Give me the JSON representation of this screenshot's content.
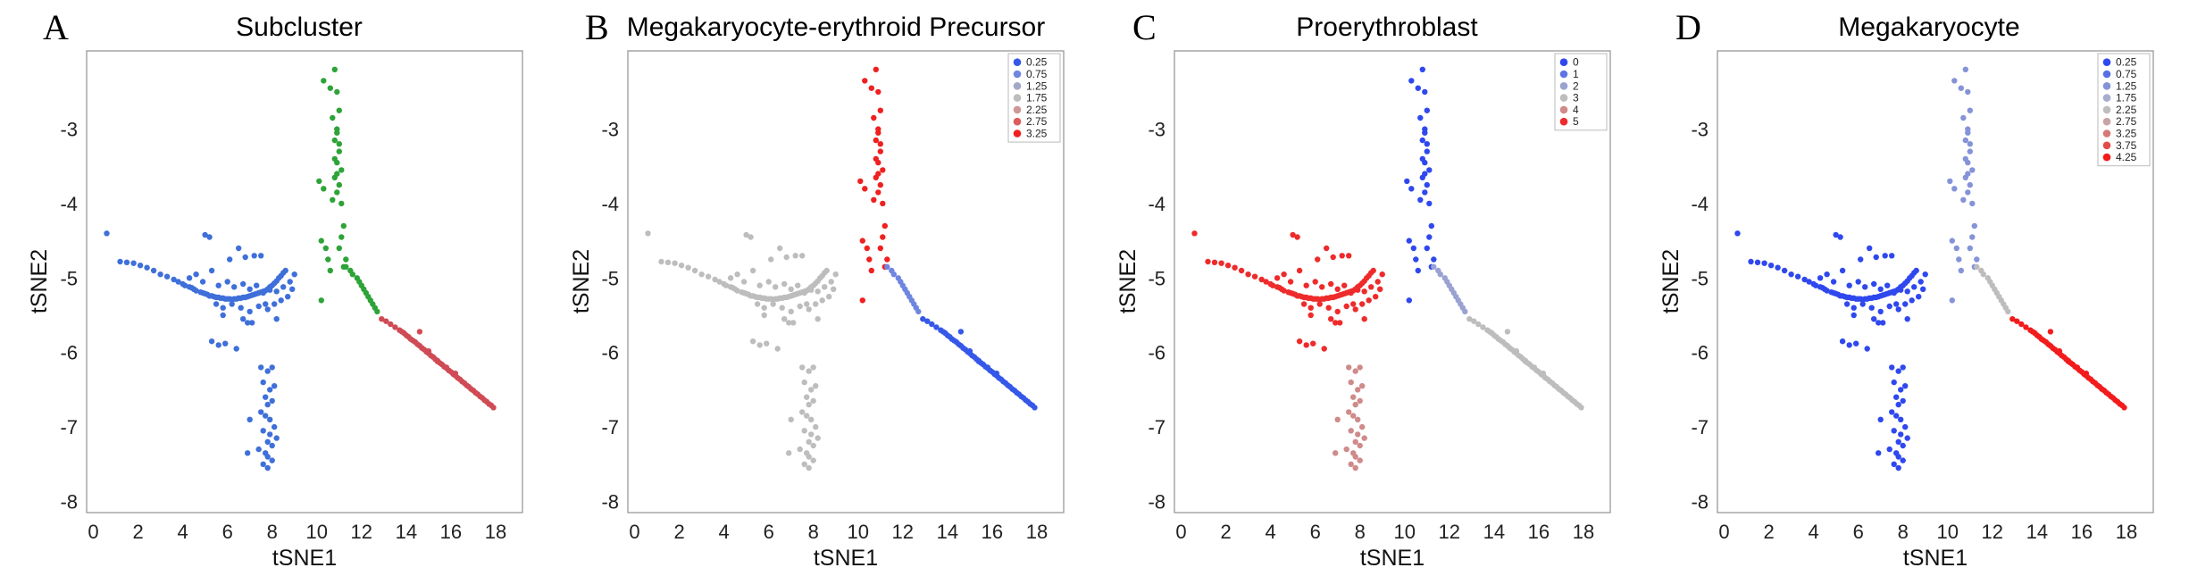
{
  "chart_data": [
    {
      "type": "scatter",
      "panel_label": "A",
      "title": "Subcluster",
      "xlabel": "tSNE1",
      "ylabel": "tSNE2",
      "xlim": [
        -0.3,
        19.2
      ],
      "ylim": [
        -8.15,
        -1.95
      ],
      "x_ticks": [
        0,
        2,
        4,
        6,
        8,
        10,
        12,
        14,
        16,
        18
      ],
      "y_ticks": [
        -3,
        -4,
        -5,
        -6,
        -7,
        -8
      ],
      "grid": false,
      "legend": null,
      "color_mode": "cluster"
    },
    {
      "type": "scatter",
      "panel_label": "B",
      "title": "Megakaryocyte-erythroid Precursor",
      "xlabel": "tSNE1",
      "ylabel": "tSNE2",
      "xlim": [
        -0.3,
        19.2
      ],
      "ylim": [
        -8.15,
        -1.95
      ],
      "x_ticks": [
        0,
        2,
        4,
        6,
        8,
        10,
        12,
        14,
        16,
        18
      ],
      "y_ticks": [
        -3,
        -4,
        -5,
        -6,
        -7,
        -8
      ],
      "grid": false,
      "legend": {
        "position": "top-right",
        "entries": [
          {
            "label": "0.25",
            "color": "#3658e8"
          },
          {
            "label": "0.75",
            "color": "#6f86e0"
          },
          {
            "label": "1.25",
            "color": "#a3a8c8"
          },
          {
            "label": "1.75",
            "color": "#bdbdbd"
          },
          {
            "label": "2.25",
            "color": "#cd9898"
          },
          {
            "label": "2.75",
            "color": "#dd5b5b"
          },
          {
            "label": "3.25",
            "color": "#ef2020"
          }
        ]
      },
      "branch_values": {
        "left": "1.75",
        "bottom": "1.75",
        "upper": "3.25",
        "mid": "0.75",
        "lower": "0.25"
      }
    },
    {
      "type": "scatter",
      "panel_label": "C",
      "title": "Proerythroblast",
      "xlabel": "tSNE1",
      "ylabel": "tSNE2",
      "xlim": [
        -0.3,
        19.2
      ],
      "ylim": [
        -8.15,
        -1.95
      ],
      "x_ticks": [
        0,
        2,
        4,
        6,
        8,
        10,
        12,
        14,
        16,
        18
      ],
      "y_ticks": [
        -3,
        -4,
        -5,
        -6,
        -7,
        -8
      ],
      "grid": false,
      "legend": {
        "position": "top-right",
        "entries": [
          {
            "label": "0",
            "color": "#2f48ee"
          },
          {
            "label": "1",
            "color": "#5f74e2"
          },
          {
            "label": "2",
            "color": "#9aa2d2"
          },
          {
            "label": "3",
            "color": "#bdbdbd"
          },
          {
            "label": "4",
            "color": "#cf8a8a"
          },
          {
            "label": "5",
            "color": "#ee2b2b"
          }
        ]
      },
      "branch_values": {
        "left": "5",
        "bottom": "4",
        "upper": "0",
        "mid": "2",
        "lower": "3"
      }
    },
    {
      "type": "scatter",
      "panel_label": "D",
      "title": "Megakaryocyte",
      "xlabel": "tSNE1",
      "ylabel": "tSNE2",
      "xlim": [
        -0.3,
        19.2
      ],
      "ylim": [
        -8.15,
        -1.95
      ],
      "x_ticks": [
        0,
        2,
        4,
        6,
        8,
        10,
        12,
        14,
        16,
        18
      ],
      "y_ticks": [
        -3,
        -4,
        -5,
        -6,
        -7,
        -8
      ],
      "grid": false,
      "legend": {
        "position": "top-right",
        "entries": [
          {
            "label": "0.25",
            "color": "#2f48ee"
          },
          {
            "label": "0.75",
            "color": "#5a6fe4"
          },
          {
            "label": "1.25",
            "color": "#8593d8"
          },
          {
            "label": "1.75",
            "color": "#a7acd0"
          },
          {
            "label": "2.25",
            "color": "#bdbdbd"
          },
          {
            "label": "2.75",
            "color": "#c9a4a4"
          },
          {
            "label": "3.25",
            "color": "#d67979"
          },
          {
            "label": "3.75",
            "color": "#e34a4a"
          },
          {
            "label": "4.25",
            "color": "#f21c1c"
          }
        ]
      },
      "branch_values": {
        "left": "0.25",
        "bottom": "0.25",
        "upper": "1.25",
        "mid": "2.25",
        "lower": "4.25"
      }
    }
  ],
  "clusters": {
    "colors": {
      "blue": "#3f6fd9",
      "green": "#2ea338",
      "red": "#cf4b55"
    },
    "left": {
      "color": "blue",
      "x": [
        0.6,
        1.2,
        1.5,
        1.8,
        2.1,
        2.4,
        2.7,
        3.0,
        3.3,
        3.6,
        3.8,
        4.0,
        4.1,
        4.3,
        4.4,
        4.5,
        4.6,
        4.8,
        4.9,
        5.0,
        5.1,
        5.2,
        5.3,
        5.4,
        5.5,
        5.6,
        5.7,
        5.8,
        5.9,
        6.0,
        6.1,
        6.2,
        6.3,
        6.4,
        6.5,
        6.6,
        6.7,
        6.8,
        6.9,
        7.0,
        7.1,
        7.2,
        7.3,
        7.4,
        7.5,
        7.6,
        7.7,
        7.8,
        7.9,
        8.0,
        8.1,
        8.2,
        8.3,
        8.4,
        8.5,
        8.6,
        5.0,
        5.2,
        6.1,
        6.5,
        4.3,
        4.6,
        4.9,
        5.3,
        5.6,
        6.0,
        6.3,
        6.7,
        7.0,
        7.3,
        7.6,
        7.9,
        8.2,
        8.5,
        8.8,
        9.0,
        5.5,
        5.8,
        6.2,
        6.6,
        7.0,
        7.4,
        7.8,
        8.1,
        8.4,
        8.7,
        8.9,
        6.8,
        7.2,
        7.5,
        6.7,
        7.1,
        5.8,
        5.3,
        5.6,
        5.9,
        6.4,
        6.9,
        7.7,
        8.2
      ],
      "y": [
        -4.4,
        -4.78,
        -4.79,
        -4.8,
        -4.83,
        -4.86,
        -4.9,
        -4.95,
        -4.98,
        -5.02,
        -5.05,
        -5.08,
        -5.1,
        -5.12,
        -5.13,
        -5.15,
        -5.17,
        -5.19,
        -5.2,
        -5.21,
        -5.22,
        -5.24,
        -5.24,
        -5.25,
        -5.26,
        -5.26,
        -5.27,
        -5.27,
        -5.28,
        -5.28,
        -5.28,
        -5.29,
        -5.28,
        -5.28,
        -5.27,
        -5.27,
        -5.26,
        -5.26,
        -5.25,
        -5.24,
        -5.23,
        -5.22,
        -5.21,
        -5.2,
        -5.19,
        -5.18,
        -5.17,
        -5.15,
        -5.12,
        -5.1,
        -5.07,
        -5.04,
        -5.0,
        -4.97,
        -4.93,
        -4.9,
        -4.42,
        -4.45,
        -4.75,
        -4.6,
        -5.0,
        -4.95,
        -5.05,
        -4.9,
        -5.1,
        -5.05,
        -5.12,
        -5.08,
        -5.15,
        -5.1,
        -5.2,
        -5.16,
        -5.18,
        -5.12,
        -5.05,
        -4.95,
        -5.35,
        -5.4,
        -5.35,
        -5.4,
        -5.45,
        -5.38,
        -5.42,
        -5.35,
        -5.3,
        -5.25,
        -5.15,
        -4.72,
        -4.7,
        -4.7,
        -5.55,
        -5.6,
        -5.5,
        -5.85,
        -5.9,
        -5.88,
        -5.95,
        -5.6,
        -5.35,
        -5.55
      ]
    },
    "bottom": {
      "color": "blue",
      "x": [
        7.5,
        7.8,
        8.0,
        7.6,
        7.9,
        8.1,
        7.7,
        7.8,
        8.0,
        7.5,
        7.7,
        7.9,
        8.1,
        7.6,
        7.9,
        8.2,
        7.8,
        8.0,
        7.4,
        7.7,
        7.8,
        8.0,
        6.9,
        7.0,
        7.6,
        7.8
      ],
      "y": [
        -6.2,
        -6.25,
        -6.2,
        -6.4,
        -6.5,
        -6.45,
        -6.6,
        -6.7,
        -6.65,
        -6.8,
        -6.85,
        -6.9,
        -7.0,
        -7.05,
        -7.1,
        -7.15,
        -7.2,
        -7.25,
        -7.3,
        -7.35,
        -7.4,
        -7.45,
        -7.35,
        -6.9,
        -7.5,
        -7.55
      ]
    },
    "upper": {
      "color": "green",
      "x": [
        10.8,
        10.9,
        11.0,
        10.7,
        10.9,
        10.8,
        11.0,
        10.9,
        11.1,
        10.8,
        11.0,
        10.9,
        10.7,
        11.1,
        10.9,
        10.8,
        11.0,
        10.9,
        11.2,
        11.1,
        11.0,
        11.3,
        11.2,
        10.1,
        10.3,
        10.2,
        10.4,
        10.5,
        10.6,
        10.2,
        10.3,
        10.6
      ],
      "y": [
        -2.2,
        -2.5,
        -2.75,
        -2.85,
        -3.0,
        -3.15,
        -3.3,
        -3.45,
        -3.55,
        -3.65,
        -3.75,
        -3.85,
        -3.95,
        -4.0,
        -3.6,
        -3.4,
        -3.2,
        -3.05,
        -4.3,
        -4.45,
        -4.6,
        -4.75,
        -4.85,
        -3.7,
        -3.8,
        -4.5,
        -4.6,
        -4.75,
        -4.9,
        -5.3,
        -2.35,
        -2.45
      ]
    },
    "mid": {
      "color": "green",
      "x": [
        11.3,
        11.5,
        11.6,
        11.8,
        11.9,
        12.0,
        12.1,
        12.2,
        12.3,
        12.4,
        12.5,
        12.6,
        12.7
      ],
      "y": [
        -4.85,
        -4.9,
        -4.95,
        -5.0,
        -5.05,
        -5.1,
        -5.15,
        -5.2,
        -5.25,
        -5.3,
        -5.35,
        -5.4,
        -5.45
      ]
    },
    "lower": {
      "color": "red",
      "x": [
        12.9,
        13.1,
        13.3,
        13.5,
        13.7,
        13.8,
        13.9,
        14.0,
        14.1,
        14.2,
        14.3,
        14.4,
        14.5,
        14.6,
        14.7,
        14.8,
        14.9,
        15.0,
        15.1,
        15.2,
        15.3,
        15.4,
        15.5,
        15.6,
        15.7,
        15.8,
        15.9,
        16.0,
        16.1,
        16.2,
        16.3,
        16.4,
        16.5,
        16.6,
        16.7,
        16.8,
        16.9,
        17.0,
        17.1,
        17.2,
        17.3,
        17.4,
        17.5,
        17.6,
        17.7,
        17.8,
        17.9,
        14.6,
        15.0,
        15.4,
        15.8,
        16.2
      ],
      "y": [
        -5.55,
        -5.58,
        -5.62,
        -5.66,
        -5.7,
        -5.72,
        -5.74,
        -5.77,
        -5.79,
        -5.82,
        -5.84,
        -5.86,
        -5.89,
        -5.91,
        -5.94,
        -5.96,
        -5.99,
        -6.01,
        -6.04,
        -6.06,
        -6.09,
        -6.11,
        -6.14,
        -6.16,
        -6.19,
        -6.21,
        -6.24,
        -6.26,
        -6.29,
        -6.31,
        -6.34,
        -6.36,
        -6.39,
        -6.41,
        -6.44,
        -6.46,
        -6.49,
        -6.51,
        -6.54,
        -6.56,
        -6.59,
        -6.61,
        -6.64,
        -6.66,
        -6.69,
        -6.71,
        -6.74,
        -5.72,
        -5.98,
        -6.12,
        -6.2,
        -6.28
      ]
    }
  }
}
